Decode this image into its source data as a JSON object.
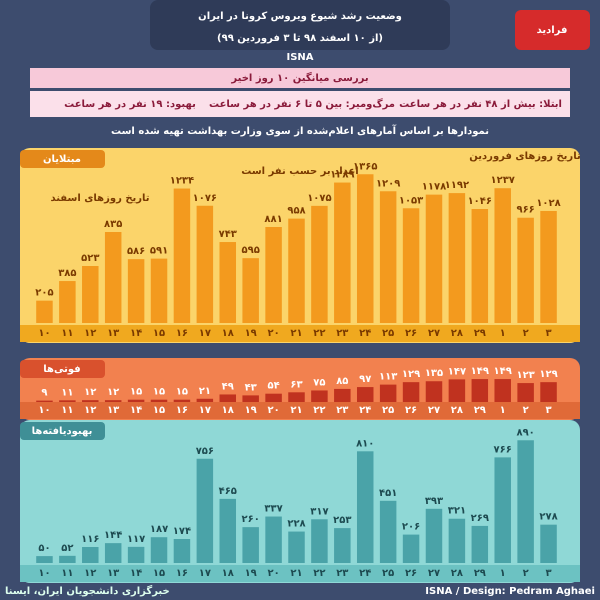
{
  "header": {
    "title": "وضعیت رشد شیوع ویروس کرونا در ایران",
    "subtitle": "(از ۱۰ اسفند ۹۸ تا ۳ فروردین ۹۹)",
    "source": "ISNA",
    "logo": "فرادید"
  },
  "summary": {
    "title": "بررسی میانگین ۱۰ روز اخیر",
    "items": [
      "ابتلا: بیش از ۴۸ نفر در هر ساعت",
      "مرگ‌ومیر: بین ۵ تا ۶ نفر در هر ساعت",
      "بهبود: ۱۹ نفر در هر ساعت"
    ],
    "note": "نمودارها بر اساس آمارهای اعلام‌شده از سوی وزارت بهداشت تهیه شده است"
  },
  "footer": {
    "credit": "ISNA / Design: Pedram Aghaei",
    "agency": "خبرگزاری دانشجویان ایران، ایسنا"
  },
  "chart_data": [
    {
      "type": "bar",
      "title": "مبتلایان",
      "annotations": [
        "تاریخ روزهای اسفند",
        "تاریخ روزهای فروردین",
        "اعداد بر حسب نفر است"
      ],
      "categories": [
        "۱۰",
        "۱۱",
        "۱۲",
        "۱۳",
        "۱۴",
        "۱۵",
        "۱۶",
        "۱۷",
        "۱۸",
        "۱۹",
        "۲۰",
        "۲۱",
        "۲۲",
        "۲۳",
        "۲۴",
        "۲۵",
        "۲۶",
        "۲۷",
        "۲۸",
        "۲۹",
        "۱",
        "۲",
        "۳"
      ],
      "values": [
        205,
        385,
        523,
        835,
        586,
        591,
        1234,
        1076,
        743,
        595,
        881,
        958,
        1075,
        1289,
        1365,
        1209,
        1053,
        1178,
        1192,
        1046,
        1237,
        966,
        1028
      ],
      "value_labels": [
        "۲۰۵",
        "۳۸۵",
        "۵۲۳",
        "۸۳۵",
        "۵۸۶",
        "۵۹۱",
        "۱۲۳۴",
        "۱۰۷۶",
        "۷۴۳",
        "۵۹۵",
        "۸۸۱",
        "۹۵۸",
        "۱۰۷۵",
        "۱۲۸۹",
        "۱۳۶۵",
        "۱۲۰۹",
        "۱۰۵۳",
        "۱۱۷۸",
        "۱۱۹۲",
        "۱۰۴۶",
        "۱۲۳۷",
        "۹۶۶",
        "۱۰۲۸"
      ],
      "color": "#f39a1e",
      "ylim": [
        0,
        1450
      ]
    },
    {
      "type": "bar",
      "title": "فوتی‌ها",
      "categories": [
        "۱۰",
        "۱۱",
        "۱۲",
        "۱۳",
        "۱۴",
        "۱۵",
        "۱۶",
        "۱۷",
        "۱۸",
        "۱۹",
        "۲۰",
        "۲۱",
        "۲۲",
        "۲۳",
        "۲۴",
        "۲۵",
        "۲۶",
        "۲۷",
        "۲۸",
        "۲۹",
        "۱",
        "۲",
        "۳"
      ],
      "values": [
        9,
        11,
        12,
        12,
        15,
        15,
        15,
        21,
        49,
        43,
        54,
        63,
        75,
        85,
        97,
        113,
        129,
        135,
        147,
        149,
        149,
        123,
        129
      ],
      "value_labels": [
        "۹",
        "۱۱",
        "۱۲",
        "۱۲",
        "۱۵",
        "۱۵",
        "۱۵",
        "۲۱",
        "۴۹",
        "۴۳",
        "۵۴",
        "۶۳",
        "۷۵",
        "۸۵",
        "۹۷",
        "۱۱۳",
        "۱۲۹",
        "۱۳۵",
        "۱۴۷",
        "۱۴۹",
        "۱۴۹",
        "۱۲۳",
        "۱۲۹"
      ],
      "color": "#c0321f",
      "ylim": [
        0,
        260
      ]
    },
    {
      "type": "bar",
      "title": "بهبودیافته‌ها",
      "categories": [
        "۱۰",
        "۱۱",
        "۱۲",
        "۱۳",
        "۱۴",
        "۱۵",
        "۱۶",
        "۱۷",
        "۱۸",
        "۱۹",
        "۲۰",
        "۲۱",
        "۲۲",
        "۲۳",
        "۲۴",
        "۲۵",
        "۲۶",
        "۲۷",
        "۲۸",
        "۲۹",
        "۱",
        "۲",
        "۳"
      ],
      "values": [
        50,
        52,
        116,
        144,
        117,
        187,
        174,
        756,
        465,
        260,
        337,
        228,
        317,
        253,
        810,
        451,
        206,
        393,
        321,
        269,
        766,
        890,
        278
      ],
      "value_labels": [
        "۵۰",
        "۵۲",
        "۱۱۶",
        "۱۴۴",
        "۱۱۷",
        "۱۸۷",
        "۱۷۴",
        "۷۵۶",
        "۴۶۵",
        "۲۶۰",
        "۳۳۷",
        "۲۲۸",
        "۳۱۷",
        "۲۵۳",
        "۸۱۰",
        "۴۵۱",
        "۲۰۶",
        "۳۹۳",
        "۳۲۱",
        "۲۶۹",
        "۷۶۶",
        "۸۹۰",
        "۲۷۸"
      ],
      "color": "#4aa3a8",
      "ylim": [
        0,
        950
      ]
    }
  ]
}
